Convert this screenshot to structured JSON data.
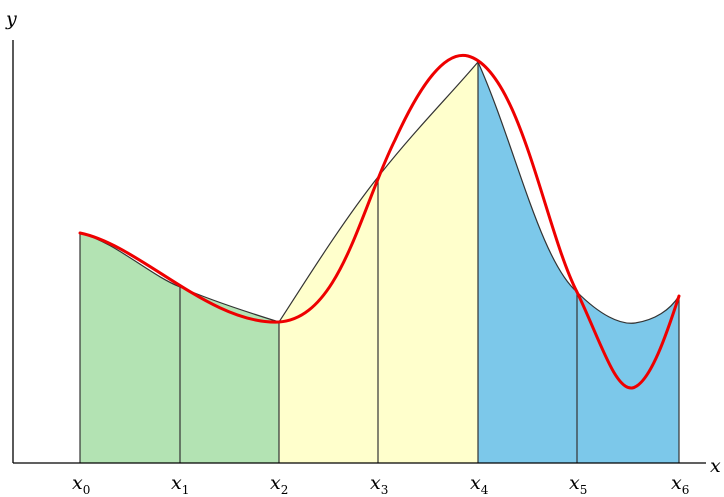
{
  "axes": {
    "y_label": "y",
    "x_label": "x"
  },
  "ticks": [
    {
      "base": "x",
      "sub": "0"
    },
    {
      "base": "x",
      "sub": "1"
    },
    {
      "base": "x",
      "sub": "2"
    },
    {
      "base": "x",
      "sub": "3"
    },
    {
      "base": "x",
      "sub": "4"
    },
    {
      "base": "x",
      "sub": "5"
    },
    {
      "base": "x",
      "sub": "6"
    }
  ],
  "colors": {
    "green_region": "#b3e3b3",
    "yellow_region": "#ffffcc",
    "blue_region": "#7cc8ea",
    "red_curve": "#ee0000",
    "lines": "#333333"
  },
  "icons": {
    "y_axis": "vertical-axis-line",
    "x_axis": "horizontal-axis-line"
  }
}
